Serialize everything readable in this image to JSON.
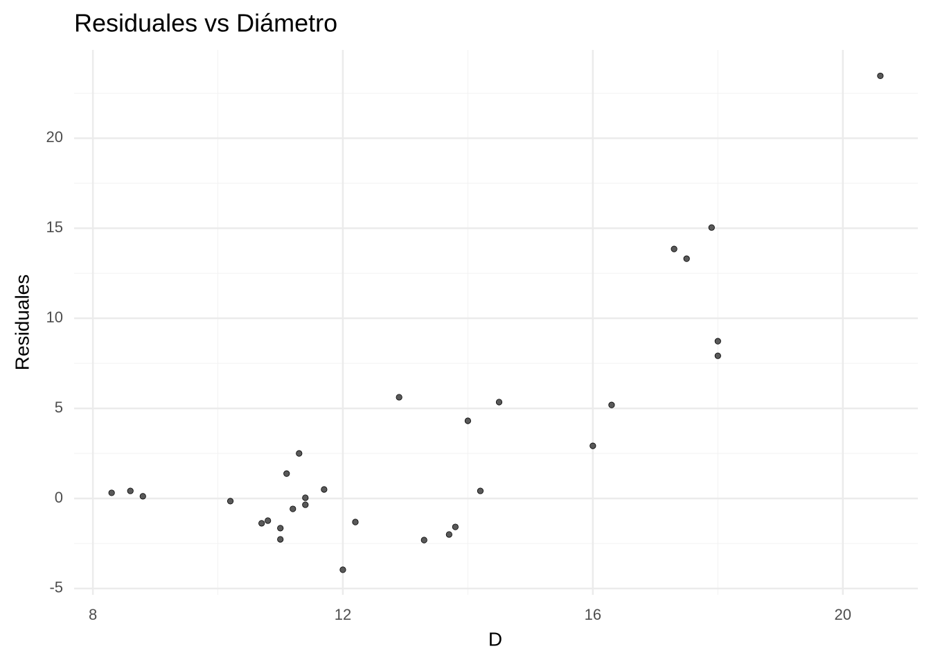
{
  "chart_data": {
    "type": "scatter",
    "title": "Residuales vs Diámetro",
    "x_label": "D",
    "y_label": "Residuales",
    "x": [
      8.3,
      8.6,
      8.8,
      10.2,
      10.7,
      10.8,
      11.0,
      11.0,
      11.1,
      11.2,
      11.3,
      11.4,
      11.4,
      11.7,
      12.0,
      12.2,
      12.9,
      13.3,
      13.7,
      13.8,
      14.0,
      14.2,
      14.5,
      16.0,
      16.3,
      17.3,
      17.5,
      17.9,
      18.0,
      18.0,
      20.6
    ],
    "values": [
      0.31,
      0.42,
      0.12,
      -0.15,
      -1.38,
      -1.23,
      -1.65,
      -2.27,
      1.38,
      -0.58,
      2.5,
      0.04,
      -0.35,
      0.5,
      -3.96,
      -1.31,
      5.62,
      -2.31,
      -2.0,
      -1.58,
      4.31,
      0.42,
      5.35,
      2.92,
      5.19,
      13.85,
      13.31,
      15.04,
      8.73,
      7.92,
      23.46
    ],
    "color": "#595959",
    "xlim": [
      7.7,
      21.2
    ],
    "ylim": [
      -5.35,
      24.9
    ],
    "xticks": [
      8,
      12,
      16,
      20
    ],
    "yticks": [
      -5,
      0,
      5,
      10,
      15,
      20
    ],
    "xminor": [
      10,
      14,
      18
    ],
    "yminor": [
      -2.5,
      2.5,
      7.5,
      12.5,
      17.5,
      22.5
    ],
    "grid": true
  }
}
